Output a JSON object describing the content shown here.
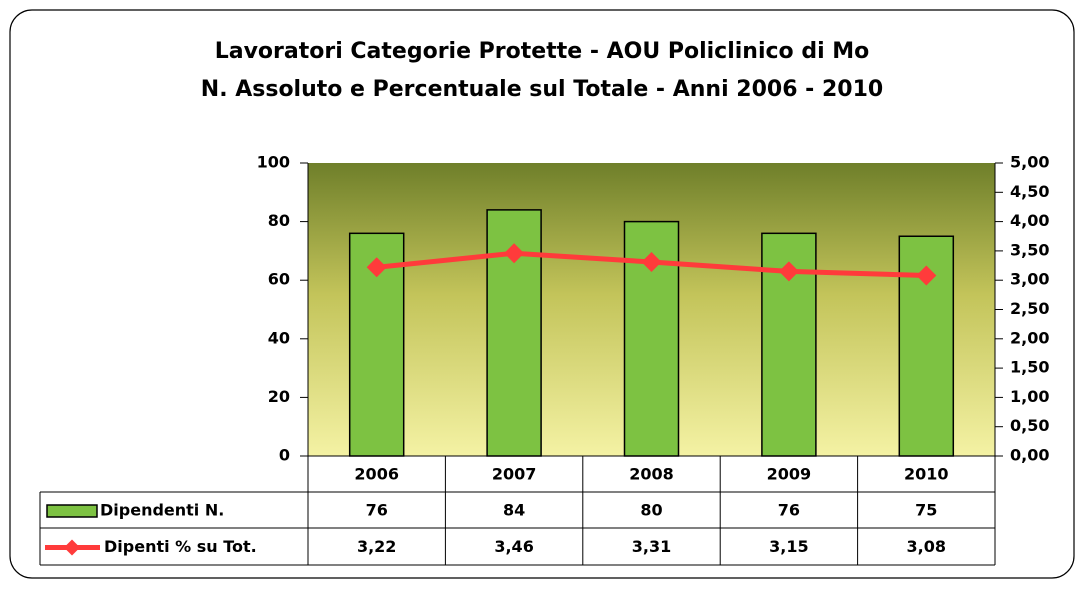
{
  "chart_data": {
    "type": "combo",
    "title": "Lavoratori Categorie Protette - AOU Policlinico di Mo",
    "subtitle": "N. Assoluto e Percentuale sul Totale -  Anni 2006 - 2010",
    "categories": [
      "2006",
      "2007",
      "2008",
      "2009",
      "2010"
    ],
    "series": [
      {
        "name": "Dipendenti N.",
        "type": "bar",
        "color": "#7dc242",
        "values": [
          76,
          84,
          80,
          76,
          75
        ]
      },
      {
        "name": "Dipenti % su Tot.",
        "type": "line",
        "axis": "y2",
        "color": "#ff3b3b",
        "values": [
          3.22,
          3.46,
          3.31,
          3.15,
          3.08
        ],
        "value_labels": [
          "3,22",
          "3,46",
          "3,31",
          "3,15",
          "3,08"
        ]
      }
    ],
    "ylim": [
      0,
      100
    ],
    "yticks": [
      0,
      20,
      40,
      60,
      80,
      100
    ],
    "y2lim": [
      0,
      5
    ],
    "y2ticks": [
      {
        "value": 0,
        "label": "0,00"
      },
      {
        "value": 0.5,
        "label": "0,50"
      },
      {
        "value": 1,
        "label": "1,00"
      },
      {
        "value": 1.5,
        "label": "1,50"
      },
      {
        "value": 2,
        "label": "2,00"
      },
      {
        "value": 2.5,
        "label": "2,50"
      },
      {
        "value": 3,
        "label": "3,00"
      },
      {
        "value": 3.5,
        "label": "3,50"
      },
      {
        "value": 4,
        "label": "4,00"
      },
      {
        "value": 4.5,
        "label": "4,50"
      },
      {
        "value": 5,
        "label": "5,00"
      }
    ],
    "data_table": true
  }
}
